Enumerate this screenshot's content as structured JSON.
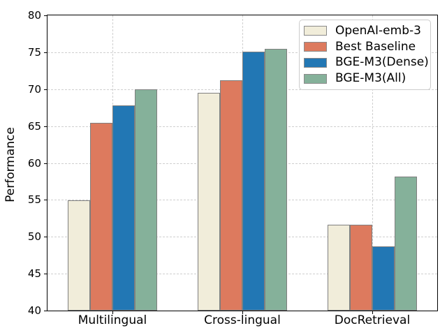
{
  "chart_data": {
    "type": "bar",
    "title": "",
    "xlabel": "",
    "ylabel": "Performance",
    "ylim": [
      40,
      80
    ],
    "yticks": [
      40,
      45,
      50,
      55,
      60,
      65,
      70,
      75,
      80
    ],
    "categories": [
      "Multilingual",
      "Cross-lingual",
      "DocRetrieval"
    ],
    "series": [
      {
        "name": "OpenAI-emb-3",
        "color": "#F1EDDA",
        "values": [
          54.9,
          69.5,
          51.6
        ]
      },
      {
        "name": "Best Baseline",
        "color": "#DD7A5E",
        "values": [
          65.4,
          71.2,
          51.6
        ]
      },
      {
        "name": "BGE-M3(Dense)",
        "color": "#2277B4",
        "values": [
          67.8,
          75.1,
          48.7
        ]
      },
      {
        "name": "BGE-M3(All)",
        "color": "#85B19A",
        "values": [
          70.0,
          75.5,
          58.2
        ]
      }
    ],
    "legend_position": "upper right",
    "grid": "dashed-both-axes",
    "bar_edge_color": "#7f7f7f",
    "grid_color": "#cfcfcf"
  }
}
